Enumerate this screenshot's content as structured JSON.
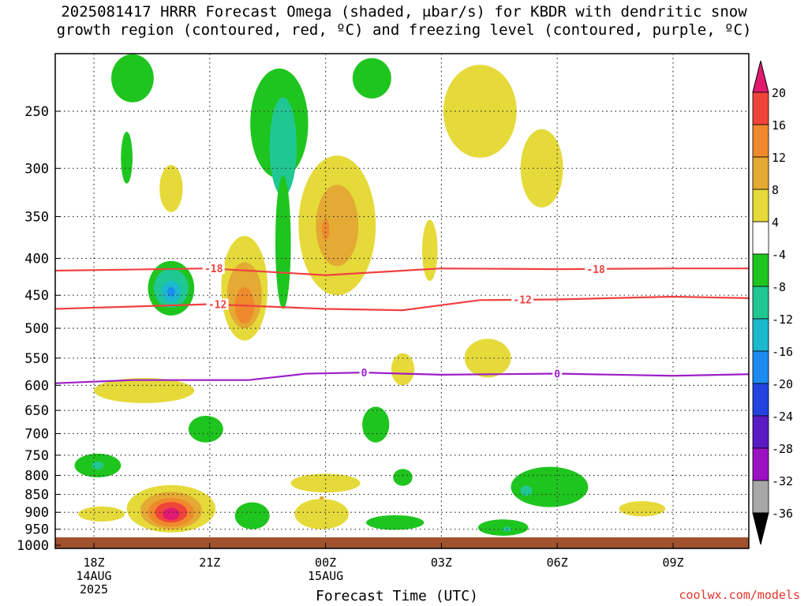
{
  "header": {
    "title_line1": "2025081417 HRRR Forecast Omega (shaded, μbar/s) for KBDR with dendritic snow",
    "title_line2": "growth region (contoured, red, ºC) and freezing level (contoured, purple, ºC)"
  },
  "footer": {
    "xlabel": "Forecast Time (UTC)",
    "credit": "coolwx.com/models"
  },
  "chart_data": {
    "type": "heatmap",
    "x_axis": {
      "ticks": [
        {
          "hour": 0,
          "label": "18Z",
          "sub": [
            "14AUG",
            "2025"
          ]
        },
        {
          "hour": 3,
          "label": "21Z",
          "sub": []
        },
        {
          "hour": 6,
          "label": "00Z",
          "sub": [
            "15AUG"
          ]
        },
        {
          "hour": 9,
          "label": "03Z",
          "sub": []
        },
        {
          "hour": 12,
          "label": "06Z",
          "sub": []
        },
        {
          "hour": 15,
          "label": "09Z",
          "sub": []
        }
      ],
      "range_hours": [
        -1,
        17.7
      ]
    },
    "y_axis": {
      "unit": "hPa",
      "levels": [
        250,
        300,
        350,
        400,
        450,
        500,
        550,
        600,
        650,
        700,
        750,
        800,
        850,
        900,
        950,
        1000
      ],
      "range": [
        208,
        1010
      ]
    },
    "colorbar": {
      "ticks": [
        "20",
        "16",
        "12",
        "8",
        "4",
        "-4",
        "-8",
        "-12",
        "-16",
        "-20",
        "-24",
        "-28",
        "-32",
        "-36"
      ],
      "colors": [
        "#e01a6f",
        "#f0443a",
        "#ef8a2c",
        "#e4aa34",
        "#e5da3a",
        "#ffffff",
        "#1fc51f",
        "#21c792",
        "#1cb9cc",
        "#1c8cf0",
        "#2243e0",
        "#5a1ac4",
        "#9b12c3",
        "#a8a8a8",
        "#000000"
      ]
    },
    "contours": [
      {
        "label": "-18",
        "color": "#f04040",
        "points": [
          [
            -1,
            416
          ],
          [
            3,
            413
          ],
          [
            6,
            422
          ],
          [
            9,
            413
          ],
          [
            12,
            414
          ],
          [
            15,
            413
          ],
          [
            17.7,
            413
          ]
        ]
      },
      {
        "label": "-12",
        "color": "#f04040",
        "points": [
          [
            -1,
            470
          ],
          [
            3,
            463
          ],
          [
            6,
            470
          ],
          [
            8,
            472
          ],
          [
            10,
            457
          ],
          [
            12,
            456
          ],
          [
            15,
            452
          ],
          [
            17.7,
            455
          ]
        ]
      },
      {
        "label": "0",
        "color": "#9d1fc7",
        "points": [
          [
            -1,
            596
          ],
          [
            1,
            590
          ],
          [
            4,
            590
          ],
          [
            5.5,
            578
          ],
          [
            7,
            576
          ],
          [
            9,
            580
          ],
          [
            12,
            578
          ],
          [
            15,
            582
          ],
          [
            17.7,
            578
          ]
        ]
      }
    ],
    "contour_labels": [
      {
        "text": "-18",
        "hour": 3.1,
        "p": 413,
        "color": "#f04040"
      },
      {
        "text": "-12",
        "hour": 3.2,
        "p": 463,
        "color": "#f04040"
      },
      {
        "text": "-12",
        "hour": 11.1,
        "p": 456,
        "color": "#f04040"
      },
      {
        "text": "-18",
        "hour": 13.0,
        "p": 414,
        "color": "#f04040"
      },
      {
        "text": "0",
        "hour": 7.0,
        "p": 576,
        "color": "#9d1fc7"
      },
      {
        "text": "0",
        "hour": 12.0,
        "p": 578,
        "color": "#9d1fc7"
      }
    ],
    "blobs": [
      {
        "hour": 2.0,
        "p": 440,
        "rh": 0.6,
        "rp": 40,
        "color": "#1fc51f"
      },
      {
        "hour": 2.0,
        "p": 440,
        "rh": 0.45,
        "rp": 28,
        "color": "#21c792"
      },
      {
        "hour": 2.0,
        "p": 445,
        "rh": 0.25,
        "rp": 16,
        "color": "#1cb9cc"
      },
      {
        "hour": 2.0,
        "p": 445,
        "rh": 0.1,
        "rp": 7,
        "color": "#1c8cf0"
      },
      {
        "hour": 3.9,
        "p": 440,
        "rh": 0.6,
        "rp": 80,
        "color": "#e5da3a"
      },
      {
        "hour": 3.9,
        "p": 450,
        "rh": 0.45,
        "rp": 50,
        "color": "#e4aa34"
      },
      {
        "hour": 3.9,
        "p": 465,
        "rh": 0.25,
        "rp": 28,
        "color": "#ef8a2c"
      },
      {
        "hour": 2.0,
        "p": 320,
        "rh": 0.3,
        "rp": 25,
        "color": "#e5da3a"
      },
      {
        "hour": 4.8,
        "p": 260,
        "rh": 0.75,
        "rp": 50,
        "color": "#1fc51f"
      },
      {
        "hour": 4.9,
        "p": 280,
        "rh": 0.35,
        "rp": 48,
        "color": "#21c792"
      },
      {
        "hour": 4.9,
        "p": 380,
        "rh": 0.2,
        "rp": 90,
        "color": "#1fc51f"
      },
      {
        "hour": 6.3,
        "p": 360,
        "rh": 1.0,
        "rp": 90,
        "color": "#e5da3a"
      },
      {
        "hour": 6.3,
        "p": 360,
        "rh": 0.55,
        "rp": 50,
        "color": "#e4aa34"
      },
      {
        "hour": 6.0,
        "p": 365,
        "rh": 0.1,
        "rp": 12,
        "color": "#ef8a2c"
      },
      {
        "hour": 1.0,
        "p": 225,
        "rh": 0.55,
        "rp": 18,
        "color": "#1fc51f"
      },
      {
        "hour": 0.85,
        "p": 290,
        "rh": 0.15,
        "rp": 25,
        "color": "#1fc51f"
      },
      {
        "hour": 7.2,
        "p": 225,
        "rh": 0.5,
        "rp": 15,
        "color": "#1fc51f"
      },
      {
        "hour": 10.0,
        "p": 250,
        "rh": 0.95,
        "rp": 40,
        "color": "#e5da3a"
      },
      {
        "hour": 11.6,
        "p": 300,
        "rh": 0.55,
        "rp": 40,
        "color": "#e5da3a"
      },
      {
        "hour": 8.7,
        "p": 390,
        "rh": 0.2,
        "rp": 40,
        "color": "#e5da3a"
      },
      {
        "hour": 10.2,
        "p": 550,
        "rh": 0.6,
        "rp": 35,
        "color": "#e5da3a"
      },
      {
        "hour": 8.0,
        "p": 570,
        "rh": 0.3,
        "rp": 30,
        "color": "#e5da3a"
      },
      {
        "hour": 1.3,
        "p": 610,
        "rh": 1.3,
        "rp": 25,
        "color": "#e5da3a"
      },
      {
        "hour": 2.9,
        "p": 690,
        "rh": 0.45,
        "rp": 30,
        "color": "#1fc51f"
      },
      {
        "hour": 0.1,
        "p": 775,
        "rh": 0.6,
        "rp": 30,
        "color": "#1fc51f"
      },
      {
        "hour": 0.1,
        "p": 775,
        "rh": 0.15,
        "rp": 10,
        "color": "#21c792"
      },
      {
        "hour": 2.0,
        "p": 890,
        "rh": 1.15,
        "rp": 70,
        "color": "#e5da3a"
      },
      {
        "hour": 0.2,
        "p": 905,
        "rh": 0.6,
        "rp": 22,
        "color": "#e5da3a"
      },
      {
        "hour": 2.0,
        "p": 895,
        "rh": 0.8,
        "rp": 55,
        "color": "#e4aa34"
      },
      {
        "hour": 2.0,
        "p": 900,
        "rh": 0.6,
        "rp": 42,
        "color": "#ef8a2c"
      },
      {
        "hour": 2.0,
        "p": 900,
        "rh": 0.42,
        "rp": 30,
        "color": "#f0443a"
      },
      {
        "hour": 2.0,
        "p": 905,
        "rh": 0.22,
        "rp": 18,
        "color": "#e01a6f"
      },
      {
        "hour": 4.1,
        "p": 910,
        "rh": 0.45,
        "rp": 40,
        "color": "#1fc51f"
      },
      {
        "hour": 6.0,
        "p": 820,
        "rh": 0.9,
        "rp": 25,
        "color": "#e5da3a"
      },
      {
        "hour": 5.9,
        "p": 905,
        "rh": 0.7,
        "rp": 45,
        "color": "#e5da3a"
      },
      {
        "hour": 5.9,
        "p": 860,
        "rh": 0.06,
        "rp": 5,
        "color": "#e4aa34"
      },
      {
        "hour": 7.3,
        "p": 680,
        "rh": 0.35,
        "rp": 40,
        "color": "#1fc51f"
      },
      {
        "hour": 8.0,
        "p": 805,
        "rh": 0.25,
        "rp": 22,
        "color": "#1fc51f"
      },
      {
        "hour": 7.8,
        "p": 930,
        "rh": 0.75,
        "rp": 22,
        "color": "#1fc51f"
      },
      {
        "hour": 10.6,
        "p": 945,
        "rh": 0.65,
        "rp": 25,
        "color": "#1fc51f"
      },
      {
        "hour": 10.7,
        "p": 950,
        "rh": 0.12,
        "rp": 7,
        "color": "#21c792"
      },
      {
        "hour": 11.8,
        "p": 830,
        "rh": 1.0,
        "rp": 55,
        "color": "#1fc51f"
      },
      {
        "hour": 11.2,
        "p": 840,
        "rh": 0.15,
        "rp": 14,
        "color": "#21c792"
      },
      {
        "hour": 14.2,
        "p": 890,
        "rh": 0.6,
        "rp": 22,
        "color": "#e5da3a"
      }
    ],
    "terrain_color": "#a0522d"
  }
}
